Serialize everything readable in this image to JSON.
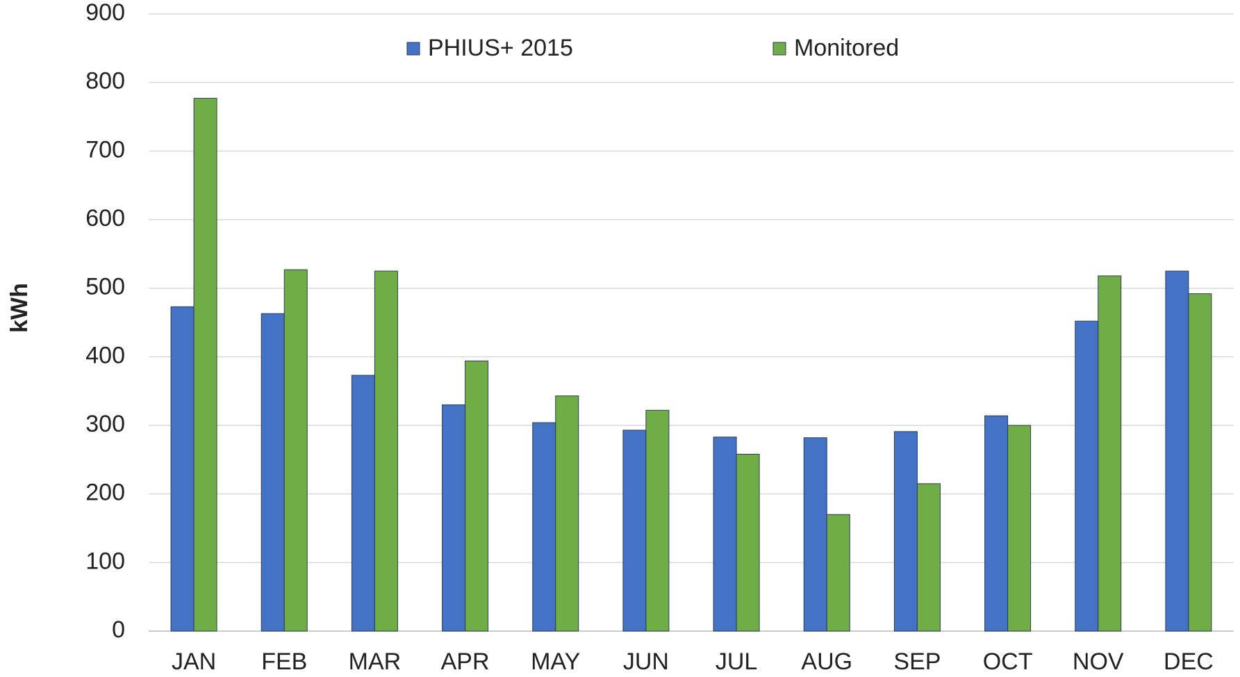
{
  "chart_data": {
    "type": "bar",
    "y_label": "kWh",
    "categories": [
      "JAN",
      "FEB",
      "MAR",
      "APR",
      "MAY",
      "JUN",
      "JUL",
      "AUG",
      "SEP",
      "OCT",
      "NOV",
      "DEC"
    ],
    "series": [
      {
        "name": "PHIUS+ 2015",
        "color": "#4472c4",
        "values": [
          473,
          463,
          373,
          330,
          304,
          293,
          283,
          282,
          291,
          314,
          452,
          525
        ]
      },
      {
        "name": "Monitored",
        "color": "#70ad47",
        "values": [
          777,
          527,
          525,
          394,
          343,
          322,
          258,
          170,
          215,
          300,
          518,
          492
        ]
      }
    ],
    "ylim": [
      0,
      900
    ],
    "yticks": [
      0,
      100,
      200,
      300,
      400,
      500,
      600,
      700,
      800,
      900
    ],
    "grid": true,
    "legend": "top"
  }
}
